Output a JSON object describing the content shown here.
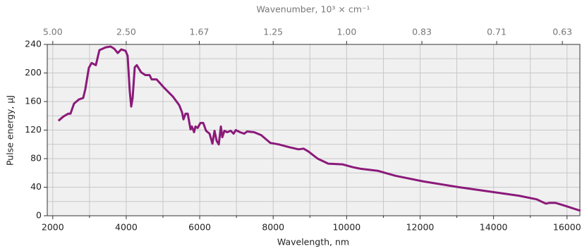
{
  "chart_data": {
    "type": "line",
    "xlabel": "Wavelength, nm",
    "ylabel": "Pulse energy, μJ",
    "x2label": "Wavenumber, 10³ × cm⁻¹",
    "x": [
      2154,
      2288,
      2423,
      2481,
      2577,
      2712,
      2827,
      2885,
      2981,
      3058,
      3173,
      3269,
      3442,
      3577,
      3673,
      3769,
      3865,
      3981,
      4038,
      4096,
      4135,
      4173,
      4231,
      4288,
      4404,
      4519,
      4635,
      4692,
      4827,
      5019,
      5269,
      5442,
      5519,
      5558,
      5615,
      5673,
      5750,
      5788,
      5846,
      5885,
      5942,
      6019,
      6096,
      6173,
      6269,
      6346,
      6404,
      6462,
      6519,
      6577,
      6615,
      6673,
      6750,
      6846,
      6923,
      6981,
      7096,
      7212,
      7288,
      7481,
      7673,
      7923,
      8154,
      8442,
      8692,
      8827,
      8962,
      9212,
      9500,
      9885,
      10173,
      10365,
      10846,
      11327,
      12096,
      13058,
      14019,
      14692,
      15173,
      15423,
      15519,
      15692,
      15942,
      16365
    ],
    "series": [
      {
        "name": "Pulse energy",
        "color": "#8b1a7a",
        "values": [
          133,
          139,
          143,
          143,
          157,
          163,
          165,
          177,
          207,
          214,
          211,
          232,
          236,
          237,
          234,
          228,
          233,
          231,
          224,
          175,
          153,
          165,
          208,
          211,
          201,
          197,
          197,
          191,
          191,
          180,
          167,
          155,
          145,
          135,
          143,
          143,
          121,
          125,
          117,
          125,
          123,
          130,
          130,
          119,
          115,
          101,
          119,
          105,
          100,
          125,
          110,
          119,
          117,
          119,
          115,
          120,
          117,
          115,
          118,
          117,
          113,
          102,
          100,
          96,
          93,
          94,
          90,
          80,
          73,
          72,
          68,
          66,
          63,
          56,
          48,
          40,
          33,
          28,
          23,
          17,
          18,
          18,
          14,
          7
        ]
      }
    ],
    "xlim": [
      1850,
      16350
    ],
    "ylim": [
      0,
      240
    ],
    "xticks": [
      2000,
      4000,
      6000,
      8000,
      10000,
      12000,
      14000,
      16000
    ],
    "xminorticks": [
      3000,
      5000,
      7000,
      9000,
      11000,
      13000,
      15000
    ],
    "yticks": [
      0,
      40,
      80,
      120,
      160,
      200,
      240
    ],
    "yminorticks": [
      20,
      60,
      100,
      140,
      180,
      220
    ],
    "x2ticks": [
      {
        "value": 5.0,
        "label": "5.00"
      },
      {
        "value": 2.5,
        "label": "2.50"
      },
      {
        "value": 1.67,
        "label": "1.67"
      },
      {
        "value": 1.25,
        "label": "1.25"
      },
      {
        "value": 1.0,
        "label": "1.00"
      },
      {
        "value": 0.83,
        "label": "0.83"
      },
      {
        "value": 0.71,
        "label": "0.71"
      },
      {
        "value": 0.63,
        "label": "0.63"
      }
    ],
    "grid": true
  }
}
